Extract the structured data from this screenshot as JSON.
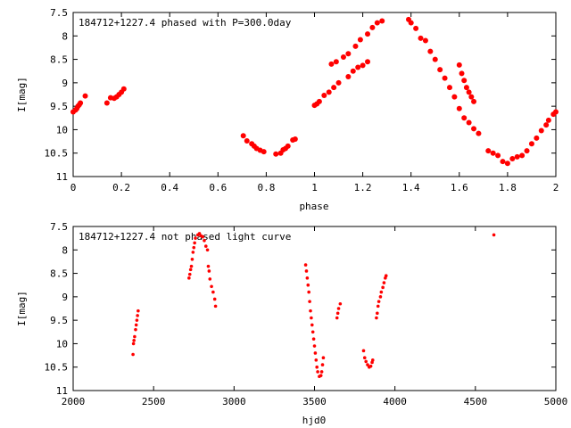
{
  "chart_data": [
    {
      "type": "scatter",
      "title": "184712+1227.4 phased with P=300.0day",
      "xlabel": "phase",
      "ylabel": "I[mag]",
      "xlim": [
        0,
        2
      ],
      "ylim": [
        11,
        7.5
      ],
      "y_inverted": true,
      "xticks": [
        "0",
        "0.2",
        "0.4",
        "0.6",
        "0.8",
        "1",
        "1.2",
        "1.4",
        "1.6",
        "1.8",
        "2"
      ],
      "yticks": [
        "7.5",
        "8",
        "8.5",
        "9",
        "9.5",
        "10",
        "10.5",
        "11"
      ],
      "grid": false,
      "marker_color": "#ff0000",
      "series": [
        {
          "points": [
            [
              0.0,
              9.62
            ],
            [
              0.01,
              9.58
            ],
            [
              0.015,
              9.55
            ],
            [
              0.02,
              9.5
            ],
            [
              0.025,
              9.47
            ],
            [
              0.03,
              9.43
            ],
            [
              0.05,
              9.28
            ],
            [
              0.14,
              9.43
            ],
            [
              0.155,
              9.32
            ],
            [
              0.17,
              9.33
            ],
            [
              0.18,
              9.3
            ],
            [
              0.19,
              9.25
            ],
            [
              0.2,
              9.2
            ],
            [
              0.21,
              9.13
            ],
            [
              0.705,
              10.13
            ],
            [
              0.72,
              10.24
            ],
            [
              0.74,
              10.3
            ],
            [
              0.75,
              10.35
            ],
            [
              0.76,
              10.4
            ],
            [
              0.775,
              10.44
            ],
            [
              0.79,
              10.47
            ],
            [
              0.84,
              10.52
            ],
            [
              0.86,
              10.5
            ],
            [
              0.87,
              10.43
            ],
            [
              0.88,
              10.4
            ],
            [
              0.89,
              10.35
            ],
            [
              0.91,
              10.22
            ],
            [
              0.92,
              10.2
            ],
            [
              1.0,
              9.48
            ],
            [
              1.01,
              9.45
            ],
            [
              1.02,
              9.4
            ],
            [
              1.04,
              9.27
            ],
            [
              1.06,
              9.2
            ],
            [
              1.08,
              9.1
            ],
            [
              1.1,
              9.0
            ],
            [
              1.14,
              8.87
            ],
            [
              1.16,
              8.75
            ],
            [
              1.18,
              8.67
            ],
            [
              1.2,
              8.63
            ],
            [
              1.22,
              8.55
            ],
            [
              1.07,
              8.6
            ],
            [
              1.09,
              8.55
            ],
            [
              1.12,
              8.45
            ],
            [
              1.14,
              8.38
            ],
            [
              1.17,
              8.22
            ],
            [
              1.19,
              8.08
            ],
            [
              1.22,
              7.96
            ],
            [
              1.24,
              7.82
            ],
            [
              1.26,
              7.72
            ],
            [
              1.28,
              7.68
            ],
            [
              1.39,
              7.65
            ],
            [
              1.4,
              7.72
            ],
            [
              1.42,
              7.84
            ],
            [
              1.44,
              8.05
            ],
            [
              1.46,
              8.1
            ],
            [
              1.48,
              8.33
            ],
            [
              1.5,
              8.5
            ],
            [
              1.52,
              8.72
            ],
            [
              1.54,
              8.9
            ],
            [
              1.56,
              9.1
            ],
            [
              1.58,
              9.3
            ],
            [
              1.6,
              9.55
            ],
            [
              1.62,
              9.75
            ],
            [
              1.64,
              9.85
            ],
            [
              1.66,
              9.98
            ],
            [
              1.68,
              10.08
            ],
            [
              1.6,
              8.62
            ],
            [
              1.61,
              8.8
            ],
            [
              1.62,
              8.95
            ],
            [
              1.63,
              9.1
            ],
            [
              1.64,
              9.2
            ],
            [
              1.65,
              9.3
            ],
            [
              1.66,
              9.4
            ],
            [
              1.72,
              10.45
            ],
            [
              1.74,
              10.5
            ],
            [
              1.76,
              10.55
            ],
            [
              1.78,
              10.68
            ],
            [
              1.8,
              10.72
            ],
            [
              1.82,
              10.62
            ],
            [
              1.84,
              10.58
            ],
            [
              1.86,
              10.55
            ],
            [
              1.88,
              10.45
            ],
            [
              1.9,
              10.3
            ],
            [
              1.92,
              10.18
            ],
            [
              1.94,
              10.02
            ],
            [
              1.96,
              9.9
            ],
            [
              1.97,
              9.8
            ],
            [
              1.99,
              9.67
            ],
            [
              2.0,
              9.62
            ]
          ]
        }
      ]
    },
    {
      "type": "scatter",
      "title": "184712+1227.4 not phased light curve",
      "xlabel": "hjd0",
      "ylabel": "I[mag]",
      "xlim": [
        2000,
        5000
      ],
      "ylim": [
        11,
        7.5
      ],
      "y_inverted": true,
      "xticks": [
        "2000",
        "2500",
        "3000",
        "3500",
        "4000",
        "4500",
        "5000"
      ],
      "yticks": [
        "7.5",
        "8",
        "8.5",
        "9",
        "9.5",
        "10",
        "10.5",
        "11"
      ],
      "grid": false,
      "marker_color": "#ff0000",
      "series": [
        {
          "points": [
            [
              2372,
              10.23
            ],
            [
              2375,
              10.0
            ],
            [
              2378,
              9.93
            ],
            [
              2382,
              9.85
            ],
            [
              2388,
              9.7
            ],
            [
              2392,
              9.6
            ],
            [
              2396,
              9.5
            ],
            [
              2400,
              9.4
            ],
            [
              2404,
              9.3
            ],
            [
              2720,
              8.6
            ],
            [
              2725,
              8.52
            ],
            [
              2730,
              8.42
            ],
            [
              2735,
              8.35
            ],
            [
              2740,
              8.2
            ],
            [
              2745,
              8.05
            ],
            [
              2750,
              7.95
            ],
            [
              2755,
              7.85
            ],
            [
              2760,
              7.75
            ],
            [
              2775,
              7.68
            ],
            [
              2785,
              7.65
            ],
            [
              2795,
              7.7
            ],
            [
              2805,
              7.72
            ],
            [
              2815,
              7.8
            ],
            [
              2825,
              7.92
            ],
            [
              2835,
              8.0
            ],
            [
              2840,
              8.35
            ],
            [
              2845,
              8.45
            ],
            [
              2850,
              8.62
            ],
            [
              2860,
              8.78
            ],
            [
              2870,
              8.9
            ],
            [
              2880,
              9.05
            ],
            [
              2885,
              9.2
            ],
            [
              3445,
              8.32
            ],
            [
              3450,
              8.45
            ],
            [
              3455,
              8.6
            ],
            [
              3460,
              8.75
            ],
            [
              3465,
              8.9
            ],
            [
              3470,
              9.1
            ],
            [
              3475,
              9.3
            ],
            [
              3480,
              9.45
            ],
            [
              3485,
              9.6
            ],
            [
              3490,
              9.75
            ],
            [
              3495,
              9.9
            ],
            [
              3500,
              10.05
            ],
            [
              3505,
              10.2
            ],
            [
              3510,
              10.35
            ],
            [
              3515,
              10.5
            ],
            [
              3520,
              10.6
            ],
            [
              3530,
              10.7
            ],
            [
              3540,
              10.68
            ],
            [
              3545,
              10.6
            ],
            [
              3550,
              10.45
            ],
            [
              3555,
              10.3
            ],
            [
              3640,
              9.45
            ],
            [
              3645,
              9.35
            ],
            [
              3650,
              9.25
            ],
            [
              3660,
              9.15
            ],
            [
              3805,
              10.15
            ],
            [
              3812,
              10.3
            ],
            [
              3820,
              10.38
            ],
            [
              3830,
              10.45
            ],
            [
              3840,
              10.5
            ],
            [
              3850,
              10.48
            ],
            [
              3858,
              10.4
            ],
            [
              3862,
              10.35
            ],
            [
              3885,
              9.45
            ],
            [
              3890,
              9.35
            ],
            [
              3895,
              9.2
            ],
            [
              3900,
              9.1
            ],
            [
              3910,
              9.0
            ],
            [
              3915,
              8.9
            ],
            [
              3925,
              8.8
            ],
            [
              3932,
              8.7
            ],
            [
              3940,
              8.6
            ],
            [
              3945,
              8.55
            ],
            [
              4615,
              7.68
            ]
          ]
        }
      ]
    }
  ]
}
